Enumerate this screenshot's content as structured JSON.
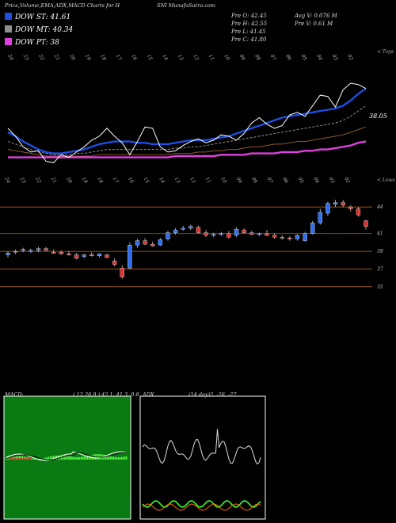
{
  "header": {
    "title_left": "Price,Volume,EMA,ADX,MACD Charts for H",
    "title_right": "SNI MunafaSutra.com"
  },
  "legend": [
    {
      "label": "DOW ST: 41.61",
      "color": "#1e4fe0"
    },
    {
      "label": "DOW MT: 40.34",
      "color": "#8f8f8f"
    },
    {
      "label": "DOW PT: 38",
      "color": "#e040e0"
    }
  ],
  "quote": {
    "open": "Pre O: 42.45",
    "high": "Pre H: 42.55",
    "low": "Pre L: 41.45",
    "close": "Pre C: 41.80",
    "avg_volume": "Avg V: 0.076 M",
    "pre_volume": "Pre V: 0.61 M"
  },
  "price_labels": {
    "ema_value": "38.05",
    "top_tag": "< Tops",
    "low_tag": "< Lows"
  },
  "chart_data": [
    {
      "type": "candlestick",
      "title": "Price",
      "y_ticks": [
        44,
        41,
        39,
        37,
        35
      ],
      "ylim": [
        34,
        45
      ],
      "candles": [
        {
          "o": 38.6,
          "h": 39.0,
          "l": 38.3,
          "c": 38.8
        },
        {
          "o": 38.9,
          "h": 39.2,
          "l": 38.7,
          "c": 39.0
        },
        {
          "o": 39.1,
          "h": 39.4,
          "l": 38.9,
          "c": 39.2
        },
        {
          "o": 39.0,
          "h": 39.3,
          "l": 38.8,
          "c": 39.1
        },
        {
          "o": 39.1,
          "h": 39.5,
          "l": 38.9,
          "c": 39.3
        },
        {
          "o": 39.3,
          "h": 39.5,
          "l": 39.0,
          "c": 39.1
        },
        {
          "o": 38.9,
          "h": 39.2,
          "l": 38.7,
          "c": 38.8
        },
        {
          "o": 38.9,
          "h": 39.1,
          "l": 38.6,
          "c": 38.7
        },
        {
          "o": 38.7,
          "h": 39.0,
          "l": 38.5,
          "c": 38.6
        },
        {
          "o": 38.6,
          "h": 38.8,
          "l": 38.1,
          "c": 38.2
        },
        {
          "o": 38.4,
          "h": 38.7,
          "l": 38.2,
          "c": 38.6
        },
        {
          "o": 38.6,
          "h": 38.9,
          "l": 38.4,
          "c": 38.5
        },
        {
          "o": 38.5,
          "h": 38.8,
          "l": 38.3,
          "c": 38.7
        },
        {
          "o": 38.6,
          "h": 38.7,
          "l": 38.2,
          "c": 38.3
        },
        {
          "o": 37.9,
          "h": 38.2,
          "l": 37.3,
          "c": 37.5
        },
        {
          "o": 37.1,
          "h": 37.4,
          "l": 35.9,
          "c": 36.1
        },
        {
          "o": 37.1,
          "h": 40.0,
          "l": 37.0,
          "c": 39.7
        },
        {
          "o": 39.7,
          "h": 40.4,
          "l": 39.4,
          "c": 40.2
        },
        {
          "o": 40.2,
          "h": 40.5,
          "l": 39.7,
          "c": 39.8
        },
        {
          "o": 39.8,
          "h": 40.1,
          "l": 39.5,
          "c": 39.6
        },
        {
          "o": 39.7,
          "h": 40.5,
          "l": 39.6,
          "c": 40.3
        },
        {
          "o": 40.4,
          "h": 41.3,
          "l": 40.2,
          "c": 41.1
        },
        {
          "o": 41.1,
          "h": 41.6,
          "l": 40.9,
          "c": 41.4
        },
        {
          "o": 41.5,
          "h": 41.9,
          "l": 41.3,
          "c": 41.6
        },
        {
          "o": 41.6,
          "h": 42.0,
          "l": 41.4,
          "c": 41.8
        },
        {
          "o": 41.7,
          "h": 41.9,
          "l": 41.0,
          "c": 41.1
        },
        {
          "o": 41.1,
          "h": 41.4,
          "l": 40.6,
          "c": 40.8
        },
        {
          "o": 40.8,
          "h": 41.1,
          "l": 40.6,
          "c": 40.9
        },
        {
          "o": 40.9,
          "h": 41.2,
          "l": 40.7,
          "c": 41.0
        },
        {
          "o": 41.0,
          "h": 41.3,
          "l": 40.4,
          "c": 40.6
        },
        {
          "o": 40.8,
          "h": 41.7,
          "l": 40.6,
          "c": 41.5
        },
        {
          "o": 41.4,
          "h": 41.6,
          "l": 41.0,
          "c": 41.1
        },
        {
          "o": 41.1,
          "h": 41.3,
          "l": 40.8,
          "c": 40.9
        },
        {
          "o": 40.9,
          "h": 41.1,
          "l": 40.7,
          "c": 41.0
        },
        {
          "o": 41.0,
          "h": 41.4,
          "l": 40.7,
          "c": 40.8
        },
        {
          "o": 40.8,
          "h": 41.0,
          "l": 40.4,
          "c": 40.6
        },
        {
          "o": 40.6,
          "h": 40.8,
          "l": 40.3,
          "c": 40.5
        },
        {
          "o": 40.5,
          "h": 40.7,
          "l": 40.2,
          "c": 40.4
        },
        {
          "o": 40.4,
          "h": 40.9,
          "l": 40.2,
          "c": 40.8
        },
        {
          "o": 40.2,
          "h": 41.2,
          "l": 40.1,
          "c": 41.0
        },
        {
          "o": 41.0,
          "h": 42.4,
          "l": 40.9,
          "c": 42.2
        },
        {
          "o": 42.2,
          "h": 43.8,
          "l": 42.0,
          "c": 43.4
        },
        {
          "o": 43.3,
          "h": 44.6,
          "l": 43.0,
          "c": 44.4
        },
        {
          "o": 44.3,
          "h": 44.8,
          "l": 44.0,
          "c": 44.5
        },
        {
          "o": 44.5,
          "h": 44.8,
          "l": 44.0,
          "c": 44.2
        },
        {
          "o": 44.0,
          "h": 44.2,
          "l": 43.5,
          "c": 43.8
        },
        {
          "o": 43.8,
          "h": 44.0,
          "l": 42.9,
          "c": 43.1
        },
        {
          "o": 42.45,
          "h": 42.55,
          "l": 41.45,
          "c": 41.8
        }
      ],
      "top_ticks": [
        "24",
        "23",
        "22",
        "21",
        "20",
        "19",
        "18",
        "17",
        "16",
        "15",
        "14",
        "13",
        "12",
        "11",
        "10",
        "09",
        "08",
        "07",
        "06",
        "05",
        "04",
        "03",
        "02"
      ],
      "bottom_ticks": [
        "24",
        "23",
        "22",
        "21",
        "20",
        "19",
        "18",
        "17",
        "16",
        "15",
        "14",
        "13",
        "12",
        "11",
        "10",
        "09",
        "08",
        "07",
        "06",
        "05",
        "04",
        "03",
        "02"
      ]
    },
    {
      "type": "line",
      "title": "EMA",
      "series": [
        {
          "name": "DOW ST",
          "color": "#1e4fe0",
          "values": [
            38.3,
            38.0,
            37.6,
            37.3,
            37.0,
            36.8,
            36.7,
            36.7,
            36.8,
            36.9,
            37.0,
            37.2,
            37.4,
            37.5,
            37.6,
            37.6,
            37.6,
            37.5,
            37.5,
            37.4,
            37.4,
            37.4,
            37.5,
            37.6,
            37.7,
            37.7,
            37.7,
            37.8,
            37.9,
            38.0,
            38.2,
            38.4,
            38.6,
            38.8,
            39.0,
            39.2,
            39.4,
            39.5,
            39.6,
            39.7,
            39.8,
            39.9,
            40.0,
            40.1,
            40.3,
            40.7,
            41.2,
            41.6
          ]
        },
        {
          "name": "DOW MT",
          "color": "#8f8f8f",
          "values": [
            37.6,
            37.4,
            37.2,
            37.0,
            36.8,
            36.7,
            36.6,
            36.6,
            36.6,
            36.7,
            36.7,
            36.8,
            36.9,
            37.0,
            37.0,
            37.0,
            37.0,
            37.0,
            37.0,
            37.0,
            37.0,
            37.0,
            37.1,
            37.1,
            37.2,
            37.2,
            37.3,
            37.4,
            37.5,
            37.6,
            37.7,
            37.8,
            37.9,
            38.0,
            38.1,
            38.2,
            38.3,
            38.4,
            38.5,
            38.6,
            38.7,
            38.8,
            38.9,
            39.0,
            39.2,
            39.5,
            39.9,
            40.3
          ]
        },
        {
          "name": "",
          "color": "#8b5a2b",
          "values": [
            37.0,
            36.9,
            36.8,
            36.7,
            36.6,
            36.5,
            36.5,
            36.5,
            36.5,
            36.5,
            36.5,
            36.5,
            36.6,
            36.6,
            36.6,
            36.6,
            36.6,
            36.6,
            36.6,
            36.6,
            36.6,
            36.6,
            36.7,
            36.7,
            36.7,
            36.8,
            36.8,
            36.9,
            36.9,
            37.0,
            37.0,
            37.1,
            37.2,
            37.2,
            37.3,
            37.4,
            37.4,
            37.5,
            37.6,
            37.6,
            37.7,
            37.8,
            37.9,
            38.0,
            38.1,
            38.3,
            38.5,
            38.7
          ]
        },
        {
          "name": "DOW PT",
          "color": "#e040e0",
          "values": [
            36.4,
            36.4,
            36.4,
            36.4,
            36.4,
            36.4,
            36.4,
            36.4,
            36.4,
            36.4,
            36.4,
            36.4,
            36.4,
            36.4,
            36.4,
            36.4,
            36.4,
            36.4,
            36.4,
            36.4,
            36.4,
            36.4,
            36.5,
            36.5,
            36.5,
            36.5,
            36.5,
            36.5,
            36.6,
            36.6,
            36.6,
            36.6,
            36.7,
            36.7,
            36.7,
            36.7,
            36.8,
            36.8,
            36.8,
            36.9,
            36.9,
            37.0,
            37.0,
            37.1,
            37.2,
            37.3,
            37.5,
            37.6
          ]
        },
        {
          "name": "",
          "color": "#ffffff",
          "values": [
            38.6,
            38.0,
            37.2,
            36.8,
            36.9,
            36.1,
            36.0,
            36.6,
            36.4,
            36.8,
            37.2,
            37.7,
            38.0,
            38.6,
            38.0,
            37.5,
            36.6,
            37.6,
            38.7,
            38.6,
            37.2,
            36.8,
            36.9,
            37.3,
            37.6,
            37.8,
            37.5,
            37.7,
            38.1,
            38.0,
            37.7,
            38.2,
            39.0,
            39.4,
            38.9,
            38.6,
            38.8,
            39.6,
            39.8,
            39.5,
            40.3,
            41.1,
            41.0,
            40.2,
            41.5,
            42.0,
            41.9,
            41.6
          ]
        }
      ]
    },
    {
      "type": "macd",
      "title": "MACD",
      "label": "MACD:",
      "params": "( 12,26,9 ) 42.1, 41.3, 0.8"
    },
    {
      "type": "adx",
      "title": "ADX",
      "label": "ADX",
      "params": "(14 day)2, -26, -27"
    }
  ]
}
